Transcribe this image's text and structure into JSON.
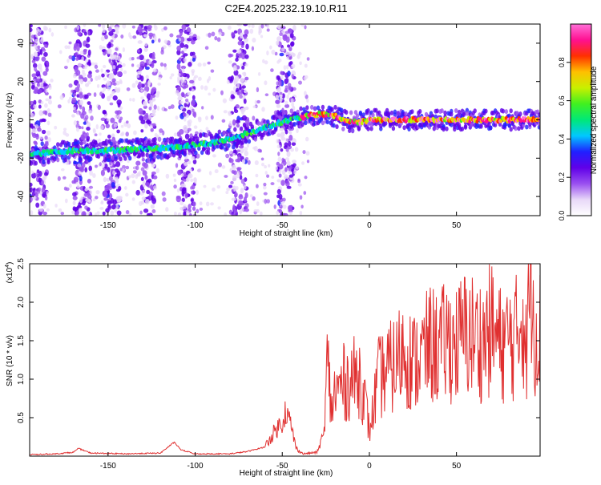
{
  "figure": {
    "title": "C2E4.2025.232.19.10.R11"
  },
  "colors": {
    "snr_line": "#e03030",
    "axis": "#000000",
    "background": "#ffffff"
  },
  "chart_data": [
    {
      "type": "heatmap",
      "xlabel": "Height of straight line (km)",
      "ylabel": "Frequency (Hz)",
      "xlim": [
        -195,
        98
      ],
      "ylim": [
        -50,
        50
      ],
      "x_ticks": [
        -150,
        -100,
        -50,
        0,
        50
      ],
      "y_ticks": [
        -40,
        -20,
        0,
        20,
        40
      ],
      "colorbar": {
        "label": "Normalized spectral amplitude",
        "range": [
          0,
          1
        ],
        "ticks": [
          "0.0",
          "0.2",
          "0.4",
          "0.6",
          "0.8"
        ],
        "tick_values": [
          0.0,
          0.2,
          0.4,
          0.6,
          0.8
        ],
        "colormap": [
          "#ffffff",
          "#e8d8f8",
          "#9a50f0",
          "#6000e8",
          "#2020ff",
          "#00c8ff",
          "#00e878",
          "#40f020",
          "#c8f000",
          "#ffc000",
          "#ff3000",
          "#ff1090",
          "#ff70d8"
        ]
      },
      "ridge": {
        "x": [
          -195,
          -170,
          -150,
          -130,
          -120,
          -110,
          -100,
          -90,
          -80,
          -70,
          -60,
          -50,
          -45,
          -40,
          -35,
          -30,
          -25,
          -20,
          -15,
          -10,
          -5,
          0,
          10,
          20,
          30,
          40,
          50,
          60,
          70,
          80,
          90,
          98
        ],
        "frequency": [
          -18,
          -16,
          -16,
          -15,
          -15,
          -14,
          -13,
          -12,
          -10,
          -7,
          -4,
          -1,
          0,
          1,
          2,
          3,
          3,
          2,
          0,
          -1,
          -1,
          0,
          0,
          0,
          0,
          0,
          0,
          0,
          0,
          0,
          0,
          0
        ]
      },
      "noise_bands": [
        -190,
        -165,
        -148,
        -128,
        -105,
        -75,
        -48
      ]
    },
    {
      "type": "line",
      "xlabel": "Height of straight line (km)",
      "ylabel": "SNR (10 * v/v)",
      "y_multiplier": "(x10",
      "y_multiplier_exp": "4",
      "xlim": [
        -195,
        98
      ],
      "ylim": [
        0,
        2.5
      ],
      "x_ticks": [
        -150,
        -100,
        -50,
        0,
        50
      ],
      "y_ticks": [
        "0.5",
        "1.0",
        "1.5",
        "2.0",
        "2.5"
      ],
      "y_tick_values": [
        0.5,
        1.0,
        1.5,
        2.0,
        2.5
      ],
      "series": [
        {
          "x": [
            -195,
            -180,
            -170,
            -167,
            -160,
            -140,
            -120,
            -112,
            -108,
            -100,
            -80,
            -70,
            -60,
            -55,
            -50,
            -48,
            -45,
            -42,
            -38,
            -30,
            -26,
            -24,
            -22,
            -20,
            -15,
            -10,
            -5,
            -1,
            0,
            5,
            10,
            15,
            20,
            25,
            30,
            35,
            40,
            45,
            50,
            55,
            60,
            65,
            70,
            75,
            80,
            85,
            88,
            90,
            93,
            95,
            98
          ],
          "values": [
            0.02,
            0.03,
            0.05,
            0.1,
            0.04,
            0.03,
            0.04,
            0.18,
            0.08,
            0.03,
            0.03,
            0.06,
            0.12,
            0.3,
            0.45,
            0.6,
            0.4,
            0.1,
            0.03,
            0.05,
            0.3,
            1.25,
            0.6,
            0.8,
            0.95,
            1.0,
            1.05,
            0.5,
            0.3,
            1.0,
            1.1,
            1.2,
            1.4,
            1.2,
            1.3,
            1.45,
            1.4,
            1.5,
            1.45,
            1.6,
            1.55,
            1.5,
            1.65,
            1.45,
            1.5,
            1.55,
            2.0,
            1.3,
            2.5,
            1.7,
            1.6
          ]
        }
      ]
    }
  ]
}
